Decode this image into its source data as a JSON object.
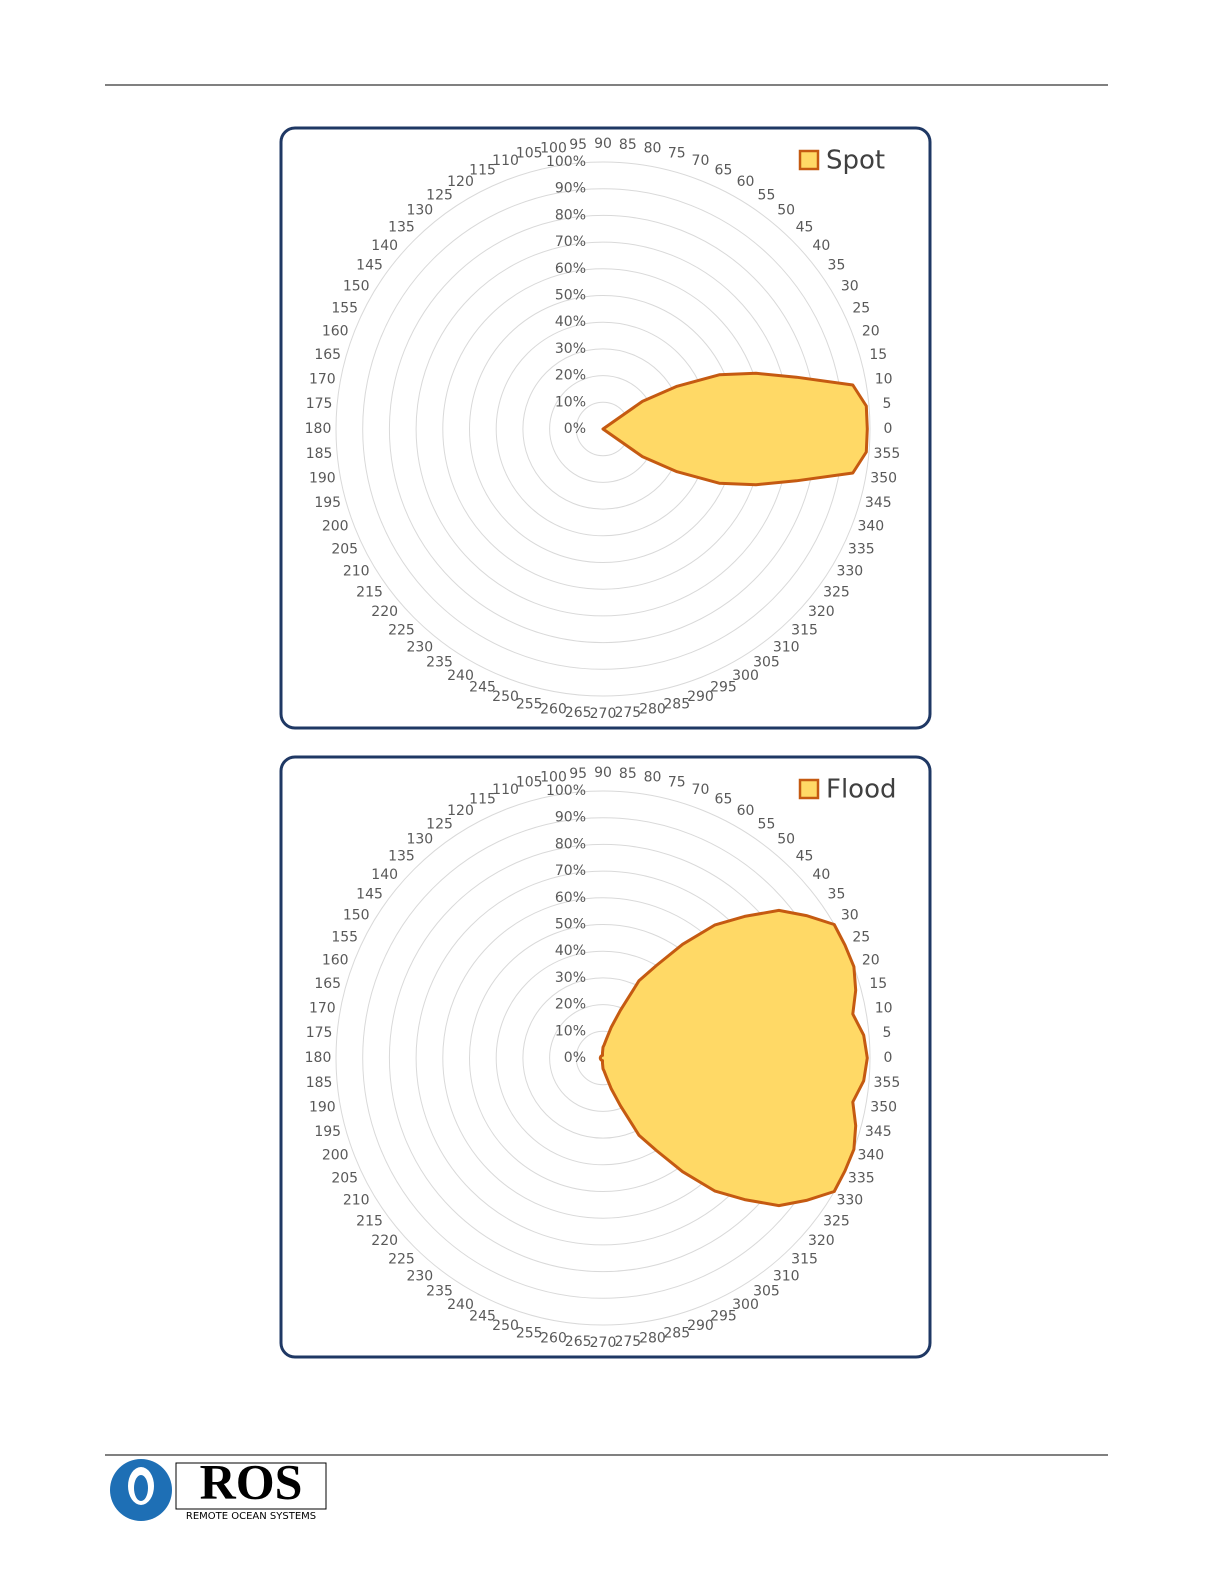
{
  "chart_data": [
    {
      "type": "radar",
      "legend": "top-right",
      "grid": true,
      "edge_color": "#c55a11",
      "x": [
        0,
        5,
        10,
        15,
        20,
        25,
        30,
        35,
        40,
        45,
        50,
        55,
        60,
        65,
        70,
        75,
        80,
        85,
        90,
        95,
        100,
        105,
        110,
        115,
        120,
        125,
        130,
        135,
        140,
        145,
        150,
        155,
        160,
        165,
        170,
        175,
        180,
        185,
        190,
        195,
        200,
        205,
        210,
        215,
        220,
        225,
        230,
        235,
        240,
        245,
        250,
        255,
        260,
        265,
        270,
        275,
        280,
        285,
        290,
        295,
        300,
        305,
        310,
        315,
        320,
        325,
        330,
        335,
        340,
        345,
        350,
        355
      ],
      "series": [
        {
          "name": "Spot",
          "color": "#ffd966",
          "values": [
            99,
            99,
            95,
            75,
            61,
            48,
            32,
            18,
            0,
            0,
            0,
            0,
            0,
            0,
            0,
            0,
            0,
            0,
            0,
            0,
            0,
            0,
            0,
            0,
            0,
            0,
            0,
            0,
            0,
            0,
            0,
            0,
            0,
            0,
            0,
            0,
            0,
            0,
            0,
            0,
            0,
            0,
            0,
            0,
            0,
            0,
            0,
            0,
            0,
            0,
            0,
            0,
            0,
            0,
            0,
            0,
            0,
            0,
            0,
            0,
            0,
            0,
            0,
            0,
            0,
            18,
            32,
            48,
            61,
            75,
            95,
            99
          ]
        }
      ],
      "ylim": [
        0,
        100
      ],
      "yticks": [
        {
          "value": 0,
          "label": "0%"
        },
        {
          "value": 10,
          "label": "10%"
        },
        {
          "value": 20,
          "label": "20%"
        },
        {
          "value": 30,
          "label": "30%"
        },
        {
          "value": 40,
          "label": "40%"
        },
        {
          "value": 50,
          "label": "50%"
        },
        {
          "value": 60,
          "label": "60%"
        },
        {
          "value": 70,
          "label": "70%"
        },
        {
          "value": 80,
          "label": "80%"
        },
        {
          "value": 90,
          "label": "90%"
        },
        {
          "value": 100,
          "label": "100%"
        }
      ]
    },
    {
      "type": "radar",
      "legend": "top-right",
      "grid": true,
      "edge_color": "#c55a11",
      "x": [
        0,
        5,
        10,
        15,
        20,
        25,
        30,
        35,
        40,
        45,
        50,
        55,
        60,
        65,
        70,
        75,
        80,
        85,
        90,
        95,
        100,
        105,
        110,
        115,
        120,
        125,
        130,
        135,
        140,
        145,
        150,
        155,
        160,
        165,
        170,
        175,
        180,
        185,
        190,
        195,
        200,
        205,
        210,
        215,
        220,
        225,
        230,
        235,
        240,
        245,
        250,
        255,
        260,
        265,
        270,
        275,
        280,
        285,
        290,
        295,
        300,
        305,
        310,
        315,
        320,
        325,
        330,
        335,
        340,
        345,
        350,
        355
      ],
      "series": [
        {
          "name": "Flood",
          "color": "#ffd966",
          "values": [
            99,
            98,
            95,
            98,
            100,
            100,
            100,
            93,
            86,
            75,
            65,
            52,
            40,
            32,
            19,
            12,
            7,
            5,
            4,
            2,
            1,
            1,
            1,
            1,
            1,
            1,
            1,
            1,
            1,
            1,
            1,
            1,
            1,
            1,
            1,
            1,
            1,
            1,
            1,
            1,
            1,
            1,
            1,
            1,
            1,
            1,
            1,
            1,
            1,
            1,
            1,
            1,
            1,
            2,
            4,
            5,
            7,
            12,
            19,
            32,
            40,
            52,
            65,
            75,
            86,
            93,
            100,
            100,
            100,
            98,
            95,
            98
          ]
        }
      ],
      "ylim": [
        0,
        100
      ],
      "yticks": [
        {
          "value": 0,
          "label": "0%"
        },
        {
          "value": 10,
          "label": "10%"
        },
        {
          "value": 20,
          "label": "20%"
        },
        {
          "value": 30,
          "label": "30%"
        },
        {
          "value": 40,
          "label": "40%"
        },
        {
          "value": 50,
          "label": "50%"
        },
        {
          "value": 60,
          "label": "60%"
        },
        {
          "value": 70,
          "label": "70%"
        },
        {
          "value": 80,
          "label": "80%"
        },
        {
          "value": 90,
          "label": "90%"
        },
        {
          "value": 100,
          "label": "100%"
        }
      ]
    }
  ],
  "footer": {
    "logo_text": "ROS",
    "logo_subtitle": "REMOTE OCEAN SYSTEMS"
  }
}
